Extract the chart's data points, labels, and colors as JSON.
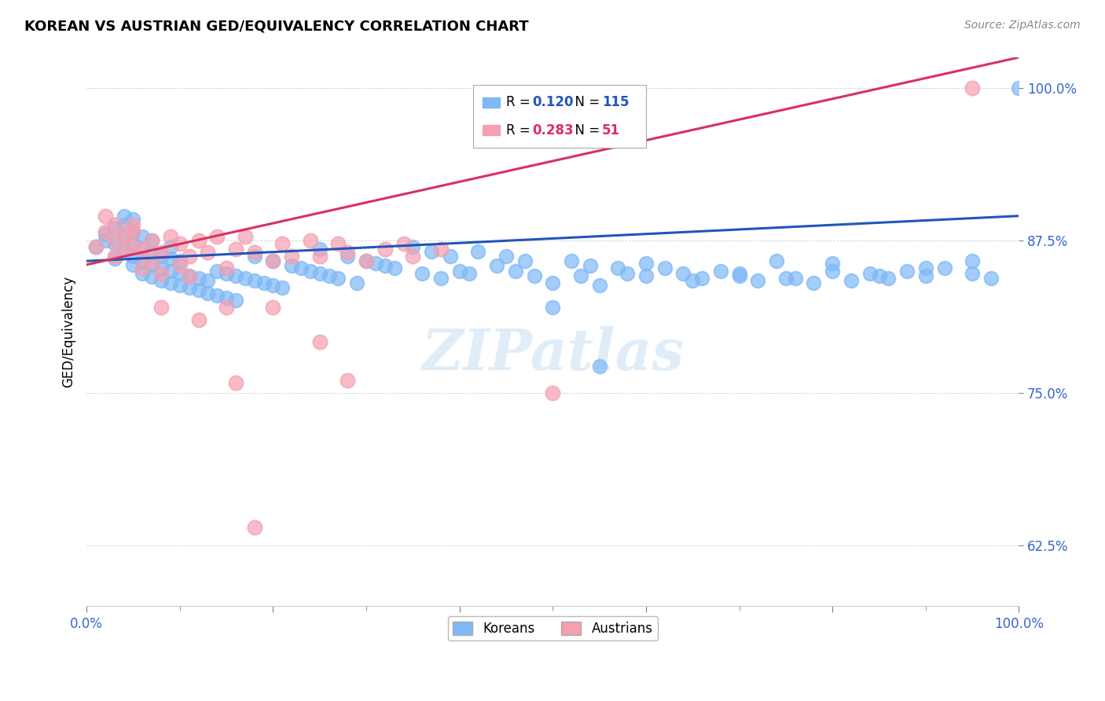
{
  "title": "KOREAN VS AUSTRIAN GED/EQUIVALENCY CORRELATION CHART",
  "source": "Source: ZipAtlas.com",
  "ylabel": "GED/Equivalency",
  "ytick_labels": [
    "100.0%",
    "87.5%",
    "75.0%",
    "62.5%"
  ],
  "ytick_values": [
    1.0,
    0.875,
    0.75,
    0.625
  ],
  "korean_color": "#7EB8F7",
  "austrian_color": "#F4A0B0",
  "korean_line_color": "#2255BB",
  "austrian_line_color": "#D93060",
  "korean_R": 0.12,
  "korean_N": 115,
  "austrian_R": 0.283,
  "austrian_N": 51,
  "legend_label_korean": "Koreans",
  "legend_label_austrian": "Austrians",
  "watermark": "ZIPatlas",
  "xlim": [
    0.0,
    1.0
  ],
  "ylim": [
    0.575,
    1.025
  ],
  "korean_scatter_x": [
    0.01,
    0.02,
    0.02,
    0.03,
    0.03,
    0.03,
    0.04,
    0.04,
    0.04,
    0.04,
    0.05,
    0.05,
    0.05,
    0.05,
    0.05,
    0.06,
    0.06,
    0.06,
    0.06,
    0.07,
    0.07,
    0.07,
    0.07,
    0.08,
    0.08,
    0.08,
    0.09,
    0.09,
    0.09,
    0.09,
    0.1,
    0.1,
    0.1,
    0.11,
    0.11,
    0.12,
    0.12,
    0.13,
    0.13,
    0.14,
    0.14,
    0.15,
    0.15,
    0.16,
    0.16,
    0.17,
    0.18,
    0.18,
    0.19,
    0.2,
    0.2,
    0.21,
    0.22,
    0.23,
    0.24,
    0.25,
    0.25,
    0.26,
    0.27,
    0.28,
    0.29,
    0.3,
    0.31,
    0.32,
    0.33,
    0.35,
    0.36,
    0.37,
    0.38,
    0.39,
    0.4,
    0.41,
    0.42,
    0.44,
    0.45,
    0.46,
    0.47,
    0.48,
    0.5,
    0.52,
    0.53,
    0.54,
    0.55,
    0.57,
    0.58,
    0.6,
    0.62,
    0.64,
    0.66,
    0.68,
    0.7,
    0.72,
    0.74,
    0.76,
    0.78,
    0.8,
    0.82,
    0.84,
    0.86,
    0.88,
    0.9,
    0.92,
    0.95,
    0.97,
    1.0,
    0.5,
    0.55,
    0.6,
    0.65,
    0.7,
    0.75,
    0.8,
    0.85,
    0.9,
    0.95
  ],
  "korean_scatter_y": [
    0.87,
    0.875,
    0.88,
    0.86,
    0.872,
    0.885,
    0.868,
    0.878,
    0.888,
    0.895,
    0.855,
    0.862,
    0.872,
    0.882,
    0.892,
    0.848,
    0.858,
    0.868,
    0.878,
    0.845,
    0.855,
    0.865,
    0.875,
    0.842,
    0.852,
    0.862,
    0.84,
    0.85,
    0.86,
    0.87,
    0.838,
    0.848,
    0.858,
    0.836,
    0.846,
    0.834,
    0.844,
    0.832,
    0.842,
    0.83,
    0.85,
    0.828,
    0.848,
    0.826,
    0.846,
    0.844,
    0.842,
    0.862,
    0.84,
    0.858,
    0.838,
    0.836,
    0.854,
    0.852,
    0.85,
    0.848,
    0.868,
    0.846,
    0.844,
    0.862,
    0.84,
    0.858,
    0.856,
    0.854,
    0.852,
    0.87,
    0.848,
    0.866,
    0.844,
    0.862,
    0.85,
    0.848,
    0.866,
    0.854,
    0.862,
    0.85,
    0.858,
    0.846,
    0.82,
    0.858,
    0.846,
    0.854,
    0.772,
    0.852,
    0.848,
    0.846,
    0.852,
    0.848,
    0.844,
    0.85,
    0.846,
    0.842,
    0.858,
    0.844,
    0.84,
    0.856,
    0.842,
    0.848,
    0.844,
    0.85,
    0.846,
    0.852,
    0.848,
    0.844,
    1.0,
    0.84,
    0.838,
    0.856,
    0.842,
    0.848,
    0.844,
    0.85,
    0.846,
    0.852,
    0.858
  ],
  "austrian_scatter_x": [
    0.01,
    0.02,
    0.02,
    0.03,
    0.03,
    0.03,
    0.04,
    0.04,
    0.05,
    0.05,
    0.05,
    0.06,
    0.06,
    0.07,
    0.07,
    0.08,
    0.08,
    0.09,
    0.1,
    0.1,
    0.11,
    0.11,
    0.12,
    0.13,
    0.14,
    0.15,
    0.16,
    0.17,
    0.18,
    0.2,
    0.21,
    0.22,
    0.24,
    0.25,
    0.27,
    0.28,
    0.3,
    0.32,
    0.34,
    0.35,
    0.38,
    0.15,
    0.5,
    0.28,
    0.2,
    0.18,
    0.16,
    0.25,
    0.12,
    0.08,
    0.95
  ],
  "austrian_scatter_y": [
    0.87,
    0.882,
    0.895,
    0.862,
    0.875,
    0.888,
    0.868,
    0.88,
    0.87,
    0.882,
    0.888,
    0.852,
    0.868,
    0.858,
    0.875,
    0.848,
    0.865,
    0.878,
    0.855,
    0.872,
    0.862,
    0.845,
    0.875,
    0.865,
    0.878,
    0.852,
    0.868,
    0.878,
    0.865,
    0.858,
    0.872,
    0.862,
    0.875,
    0.862,
    0.872,
    0.865,
    0.858,
    0.868,
    0.872,
    0.862,
    0.868,
    0.82,
    0.75,
    0.76,
    0.82,
    0.64,
    0.758,
    0.792,
    0.81,
    0.82,
    1.0
  ]
}
